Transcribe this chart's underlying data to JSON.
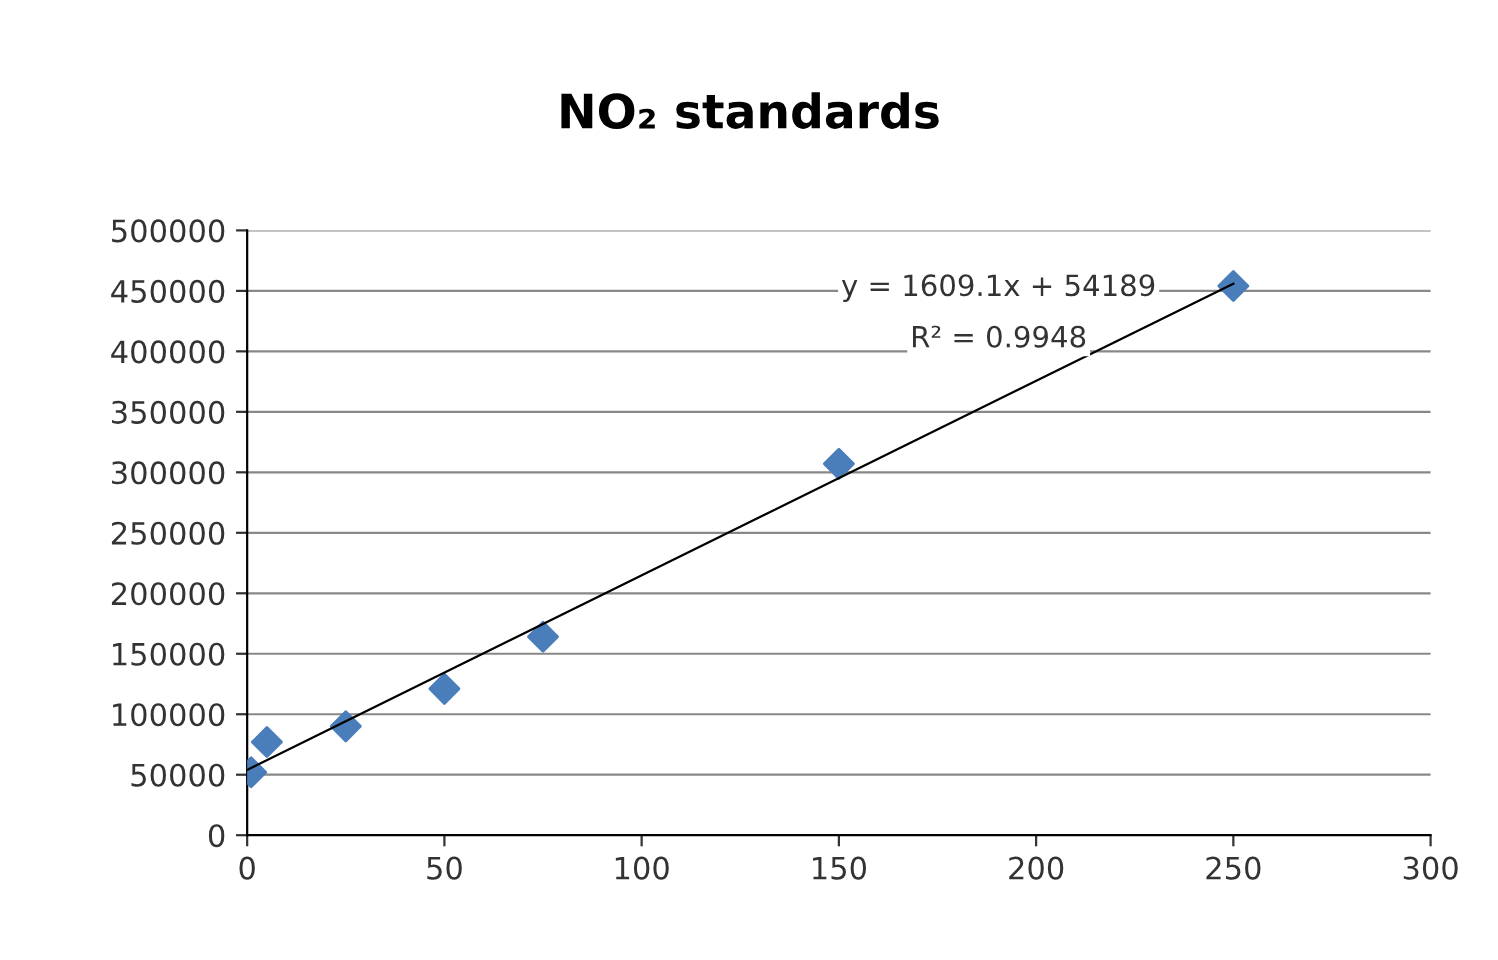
{
  "chart_data": {
    "type": "scatter",
    "title": "NO₂ standards",
    "series": [
      {
        "color": "#4a7ebb",
        "x": [
          1,
          5,
          25,
          50,
          75,
          150,
          250
        ],
        "values": [
          52000,
          77000,
          90000,
          121000,
          164000,
          307000,
          454000
        ],
        "marker": "diamond"
      },
      {
        "type": "line",
        "color": "#000000",
        "x": [
          0,
          250
        ],
        "values": [
          54000,
          456000
        ],
        "marker": "none",
        "line_style": "solid"
      }
    ],
    "annotations": [
      "y = 1609.1x + 54189",
      "R² = 0.9948"
    ],
    "xlim": [
      0,
      300
    ],
    "xticks": [
      0,
      50,
      100,
      150,
      200,
      250,
      300
    ],
    "ylim": [
      0,
      500000
    ],
    "yticks": [
      0,
      50000,
      100000,
      150000,
      200000,
      250000,
      300000,
      350000,
      400000,
      450000,
      500000
    ],
    "grid": "y",
    "legend": false
  }
}
